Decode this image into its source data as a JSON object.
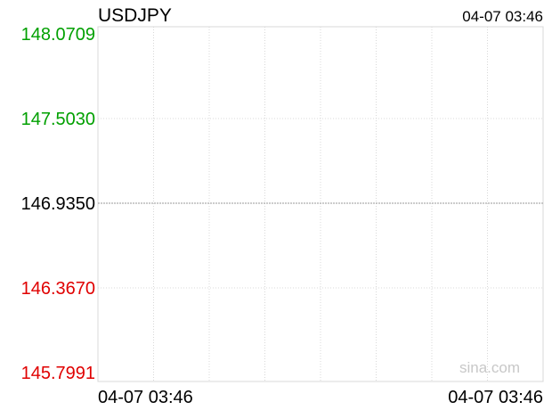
{
  "chart_data": {
    "type": "line",
    "title": "USDJPY",
    "timestamp": "04-07 03:46",
    "x_tick_labels": [
      "04-07 03:46",
      "04-07 03:46"
    ],
    "y_tick_labels": [
      "148.0709",
      "147.5030",
      "146.9350",
      "146.3670",
      "145.7991"
    ],
    "y_tick_values": [
      148.0709,
      147.503,
      146.935,
      146.367,
      145.7991
    ],
    "ylim": [
      145.7991,
      148.0709
    ],
    "reference_value": 146.935,
    "series": [],
    "grid": true,
    "watermark": "sina.com"
  },
  "colors": {
    "up": "#00a000",
    "down": "#e00000",
    "neutral": "#000000",
    "grid": "#d8d8d8",
    "reference": "#9a9a9a",
    "watermark": "#c8c8c8"
  }
}
